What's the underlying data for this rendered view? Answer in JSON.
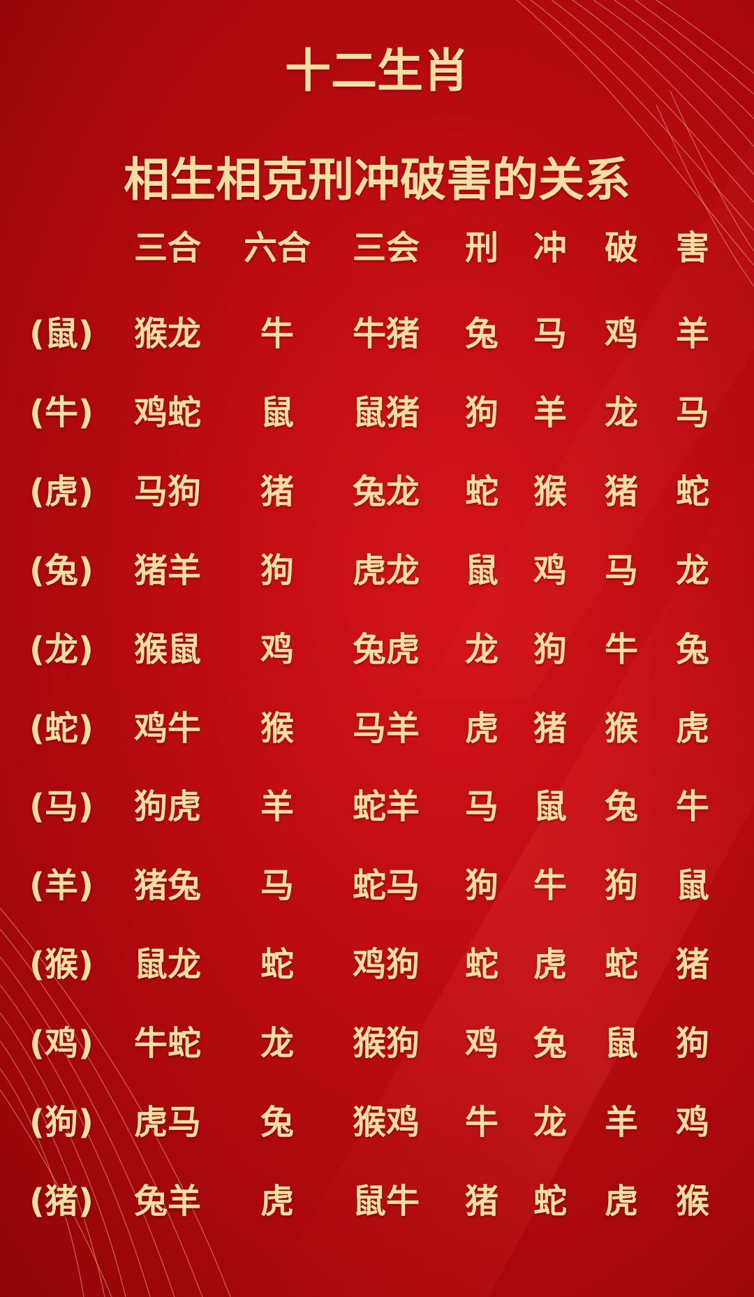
{
  "title": {
    "line1": "十二生肖",
    "line2": "相生相克刑冲破害的关系"
  },
  "colors": {
    "background": "#c00d12",
    "text": "#f7dfa2"
  },
  "table": {
    "headers": [
      "三合",
      "六合",
      "三会",
      "刑",
      "冲",
      "破",
      "害"
    ],
    "rows": [
      {
        "animal": "(鼠)",
        "cells": [
          "猴龙",
          "牛",
          "牛猪",
          "兔",
          "马",
          "鸡",
          "羊"
        ]
      },
      {
        "animal": "(牛)",
        "cells": [
          "鸡蛇",
          "鼠",
          "鼠猪",
          "狗",
          "羊",
          "龙",
          "马"
        ]
      },
      {
        "animal": "(虎)",
        "cells": [
          "马狗",
          "猪",
          "兔龙",
          "蛇",
          "猴",
          "猪",
          "蛇"
        ]
      },
      {
        "animal": "(兔)",
        "cells": [
          "猪羊",
          "狗",
          "虎龙",
          "鼠",
          "鸡",
          "马",
          "龙"
        ]
      },
      {
        "animal": "(龙)",
        "cells": [
          "猴鼠",
          "鸡",
          "兔虎",
          "龙",
          "狗",
          "牛",
          "兔"
        ]
      },
      {
        "animal": "(蛇)",
        "cells": [
          "鸡牛",
          "猴",
          "马羊",
          "虎",
          "猪",
          "猴",
          "虎"
        ]
      },
      {
        "animal": "(马)",
        "cells": [
          "狗虎",
          "羊",
          "蛇羊",
          "马",
          "鼠",
          "兔",
          "牛"
        ]
      },
      {
        "animal": "(羊)",
        "cells": [
          "猪兔",
          "马",
          "蛇马",
          "狗",
          "牛",
          "狗",
          "鼠"
        ]
      },
      {
        "animal": "(猴)",
        "cells": [
          "鼠龙",
          "蛇",
          "鸡狗",
          "蛇",
          "虎",
          "蛇",
          "猪"
        ]
      },
      {
        "animal": "(鸡)",
        "cells": [
          "牛蛇",
          "龙",
          "猴狗",
          "鸡",
          "兔",
          "鼠",
          "狗"
        ]
      },
      {
        "animal": "(狗)",
        "cells": [
          "虎马",
          "兔",
          "猴鸡",
          "牛",
          "龙",
          "羊",
          "鸡"
        ]
      },
      {
        "animal": "(猪)",
        "cells": [
          "兔羊",
          "虎",
          "鼠牛",
          "猪",
          "蛇",
          "虎",
          "猴"
        ]
      }
    ]
  }
}
